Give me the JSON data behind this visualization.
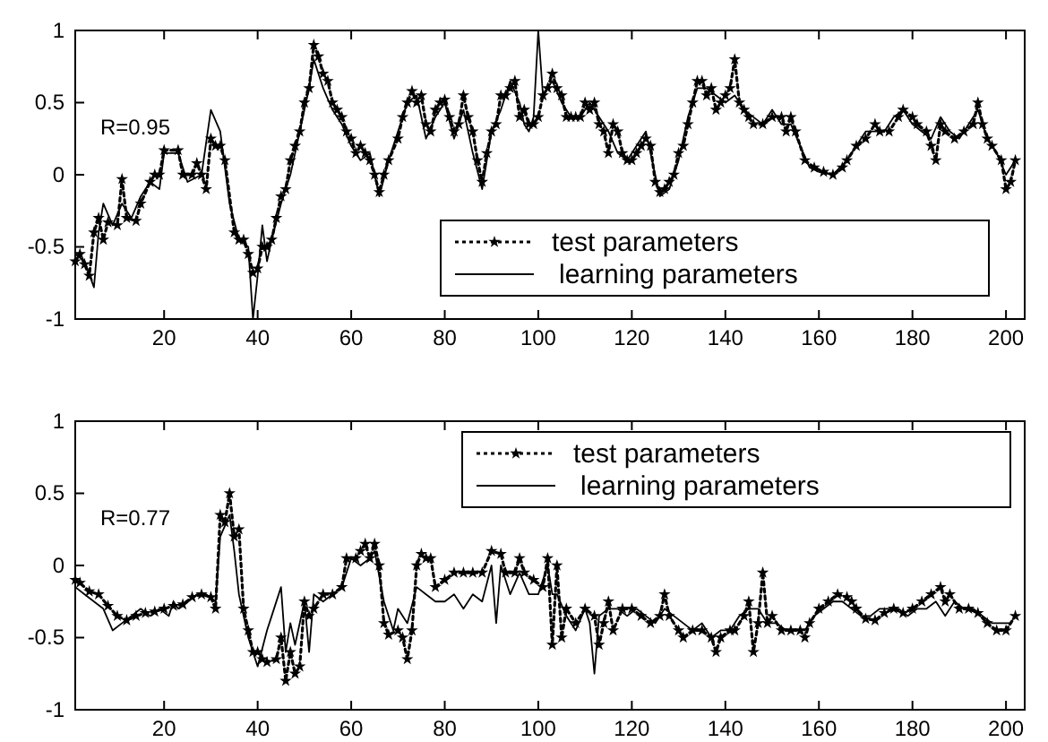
{
  "chart_data": [
    {
      "type": "line",
      "annotations": [
        "R=0.95"
      ],
      "xlim": [
        1,
        204
      ],
      "xticks": [
        20,
        40,
        60,
        80,
        100,
        120,
        140,
        160,
        180,
        200
      ],
      "ylim": [
        -1,
        1
      ],
      "yticks": [
        -1,
        -0.5,
        0,
        0.5,
        1
      ],
      "legend": "bottom right",
      "grid": false,
      "series": [
        {
          "name": "test parameters",
          "color": "#000000",
          "line_style": "dotted",
          "marker": "star",
          "x": [
            1,
            2,
            3,
            4,
            5,
            6,
            7,
            8,
            10,
            11,
            12,
            14,
            15,
            17,
            18,
            19,
            20,
            23,
            24,
            26,
            27,
            28,
            29,
            30,
            31,
            32,
            33,
            35,
            36,
            37,
            38,
            39,
            40,
            41,
            42,
            43,
            44,
            45,
            46,
            47,
            48,
            49,
            50,
            51,
            52,
            53,
            54,
            55,
            56,
            57,
            58,
            59,
            60,
            61,
            62,
            63,
            64,
            65,
            66,
            67,
            68,
            70,
            71,
            72,
            73,
            74,
            75,
            76,
            77,
            78,
            79,
            80,
            81,
            82,
            83,
            84,
            85,
            86,
            87,
            88,
            89,
            90,
            91,
            92,
            93,
            94,
            95,
            96,
            97,
            98,
            99,
            100,
            101,
            102,
            103,
            104,
            105,
            106,
            107,
            108,
            109,
            110,
            111,
            112,
            113,
            114,
            115,
            116,
            117,
            118,
            119,
            120,
            121,
            122,
            123,
            124,
            125,
            126,
            127,
            128,
            129,
            130,
            131,
            132,
            133,
            134,
            135,
            136,
            137,
            138,
            139,
            140,
            141,
            142,
            143,
            144,
            145,
            146,
            148,
            150,
            152,
            153,
            154,
            155,
            157,
            159,
            161,
            163,
            165,
            166,
            168,
            170,
            172,
            173,
            175,
            177,
            178,
            180,
            181,
            183,
            184,
            185,
            186,
            187,
            189,
            191,
            193,
            194,
            195,
            196,
            197,
            199,
            200,
            201,
            202
          ],
          "values": [
            -0.6,
            -0.55,
            -0.62,
            -0.7,
            -0.4,
            -0.3,
            -0.45,
            -0.33,
            -0.35,
            -0.03,
            -0.3,
            -0.32,
            -0.2,
            -0.05,
            0,
            0,
            0.17,
            0.17,
            0,
            0,
            0.08,
            0,
            -0.1,
            0.25,
            0.2,
            0.2,
            0.1,
            -0.4,
            -0.45,
            -0.45,
            -0.55,
            -0.68,
            -0.65,
            -0.5,
            -0.5,
            -0.45,
            -0.3,
            -0.15,
            -0.1,
            0.1,
            0.2,
            0.3,
            0.5,
            0.6,
            0.9,
            0.82,
            0.7,
            0.65,
            0.5,
            0.45,
            0.4,
            0.3,
            0.25,
            0.15,
            0.2,
            0.15,
            0.1,
            0,
            -0.12,
            0,
            0.1,
            0.25,
            0.4,
            0.5,
            0.58,
            0.5,
            0.55,
            0.35,
            0.3,
            0.45,
            0.5,
            0.52,
            0.4,
            0.3,
            0.35,
            0.55,
            0.4,
            0.3,
            0.1,
            -0.05,
            0.15,
            0.3,
            0.35,
            0.55,
            0.55,
            0.6,
            0.65,
            0.4,
            0.45,
            0.35,
            0.35,
            0.4,
            0.55,
            0.6,
            0.7,
            0.6,
            0.55,
            0.4,
            0.4,
            0.4,
            0.4,
            0.5,
            0.45,
            0.5,
            0.35,
            0.3,
            0.15,
            0.35,
            0.3,
            0.15,
            0.1,
            0.1,
            0.15,
            0.2,
            0.25,
            0.2,
            -0.05,
            -0.12,
            -0.1,
            -0.05,
            0,
            0.15,
            0.2,
            0.35,
            0.5,
            0.65,
            0.65,
            0.55,
            0.6,
            0.45,
            0.5,
            0.55,
            0.6,
            0.8,
            0.5,
            0.45,
            0.4,
            0.35,
            0.35,
            0.4,
            0.4,
            0.3,
            0.4,
            0.3,
            0.1,
            0.05,
            0.02,
            0,
            0.05,
            0.1,
            0.2,
            0.25,
            0.35,
            0.3,
            0.3,
            0.4,
            0.45,
            0.4,
            0.35,
            0.3,
            0.2,
            0.1,
            0.35,
            0.3,
            0.25,
            0.3,
            0.35,
            0.5,
            0.35,
            0.25,
            0.2,
            0.1,
            -0.1,
            -0.05,
            0.1
          ]
        },
        {
          "name": "learning parameters",
          "color": "#000000",
          "line_style": "solid",
          "marker": "none",
          "x": [
            1,
            3,
            5,
            6,
            7,
            9,
            11,
            13,
            15,
            17,
            19,
            20,
            23,
            25,
            28,
            30,
            32,
            34,
            36,
            38,
            39,
            40,
            41,
            42,
            43,
            45,
            47,
            49,
            51,
            52,
            54,
            56,
            58,
            60,
            62,
            64,
            66,
            68,
            70,
            72,
            74,
            76,
            78,
            80,
            82,
            84,
            86,
            88,
            90,
            92,
            94,
            96,
            97,
            98,
            99,
            100,
            101,
            103,
            105,
            107,
            109,
            111,
            113,
            115,
            117,
            119,
            121,
            123,
            125,
            126,
            128,
            130,
            132,
            134,
            136,
            138,
            140,
            142,
            144,
            146,
            148,
            150,
            152,
            154,
            156,
            158,
            160,
            163,
            166,
            168,
            170,
            172,
            174,
            176,
            178,
            180,
            182,
            184,
            186,
            188,
            190,
            192,
            194,
            196,
            198,
            200,
            202
          ],
          "values": [
            -0.55,
            -0.6,
            -0.78,
            -0.4,
            -0.2,
            -0.35,
            -0.2,
            -0.3,
            -0.15,
            -0.05,
            -0.1,
            0.15,
            0.15,
            -0.05,
            0,
            0.45,
            0.3,
            -0.2,
            -0.45,
            -0.5,
            -1,
            -0.7,
            -0.35,
            -0.6,
            -0.45,
            -0.2,
            0,
            0.3,
            0.6,
            0.8,
            0.6,
            0.45,
            0.35,
            0.2,
            0.1,
            0.15,
            -0.15,
            0.1,
            0.3,
            0.5,
            0.55,
            0.25,
            0.4,
            0.5,
            0.25,
            0.45,
            0.15,
            -0.1,
            0.3,
            0.45,
            0.65,
            0.5,
            0.35,
            0.3,
            0.4,
            1,
            0.55,
            0.65,
            0.5,
            0.4,
            0.4,
            0.5,
            0.4,
            0.3,
            0.15,
            0.1,
            0.2,
            0.3,
            0,
            -0.15,
            -0.1,
            0.1,
            0.4,
            0.6,
            0.6,
            0.55,
            0.5,
            0.55,
            0.45,
            0.4,
            0.35,
            0.45,
            0.35,
            0.35,
            0.2,
            0.05,
            0.02,
            0,
            0.1,
            0.2,
            0.3,
            0.3,
            0.3,
            0.4,
            0.45,
            0.35,
            0.3,
            0.25,
            0.4,
            0.3,
            0.25,
            0.35,
            0.45,
            0.25,
            0.15,
            0,
            0.1
          ]
        }
      ]
    },
    {
      "type": "line",
      "annotations": [
        "R=0.77"
      ],
      "xlim": [
        1,
        204
      ],
      "xticks": [
        20,
        40,
        60,
        80,
        100,
        120,
        140,
        160,
        180,
        200
      ],
      "ylim": [
        -1,
        1
      ],
      "yticks": [
        -1,
        -0.5,
        0,
        0.5,
        1
      ],
      "legend": "top right",
      "grid": false,
      "series": [
        {
          "name": "test parameters",
          "color": "#000000",
          "line_style": "dotted",
          "marker": "star",
          "x": [
            1,
            2,
            4,
            6,
            8,
            10,
            12,
            14,
            16,
            18,
            20,
            22,
            24,
            26,
            28,
            30,
            31,
            32,
            33,
            34,
            35,
            36,
            37,
            38,
            39,
            40,
            41,
            42,
            44,
            45,
            46,
            47,
            48,
            49,
            50,
            51,
            52,
            54,
            56,
            58,
            59,
            61,
            62,
            63,
            64,
            65,
            66,
            67,
            68,
            70,
            71,
            72,
            73,
            74,
            75,
            76,
            77,
            78,
            80,
            82,
            84,
            86,
            88,
            90,
            92,
            93,
            95,
            96,
            97,
            99,
            101,
            102,
            103,
            104,
            105,
            106,
            108,
            110,
            112,
            113,
            114,
            115,
            116,
            118,
            120,
            122,
            124,
            126,
            127,
            128,
            130,
            131,
            133,
            135,
            137,
            138,
            139,
            141,
            142,
            144,
            145,
            146,
            147,
            148,
            149,
            150,
            152,
            154,
            156,
            157,
            158,
            160,
            162,
            164,
            166,
            167,
            168,
            170,
            172,
            174,
            176,
            178,
            180,
            182,
            184,
            186,
            187,
            188,
            190,
            192,
            194,
            196,
            198,
            200,
            202
          ],
          "values": [
            -0.1,
            -0.12,
            -0.18,
            -0.2,
            -0.28,
            -0.35,
            -0.38,
            -0.35,
            -0.33,
            -0.32,
            -0.3,
            -0.28,
            -0.27,
            -0.22,
            -0.2,
            -0.22,
            -0.3,
            0.35,
            0.3,
            0.5,
            0.2,
            0.25,
            -0.3,
            -0.45,
            -0.6,
            -0.6,
            -0.65,
            -0.67,
            -0.65,
            -0.5,
            -0.8,
            -0.6,
            -0.75,
            -0.7,
            -0.25,
            -0.35,
            -0.3,
            -0.2,
            -0.2,
            -0.15,
            0.05,
            0.05,
            0.1,
            0.15,
            0.05,
            0.15,
            0,
            -0.4,
            -0.48,
            -0.45,
            -0.5,
            -0.65,
            -0.45,
            0,
            0.08,
            0.05,
            0.05,
            -0.15,
            -0.1,
            -0.05,
            -0.05,
            -0.05,
            -0.05,
            0.1,
            0.08,
            -0.05,
            -0.05,
            0.05,
            -0.05,
            -0.1,
            -0.15,
            0.05,
            -0.55,
            0,
            -0.5,
            -0.3,
            -0.4,
            -0.3,
            -0.35,
            -0.55,
            -0.4,
            -0.25,
            -0.45,
            -0.3,
            -0.3,
            -0.35,
            -0.4,
            -0.35,
            -0.2,
            -0.35,
            -0.45,
            -0.5,
            -0.45,
            -0.45,
            -0.5,
            -0.6,
            -0.5,
            -0.45,
            -0.45,
            -0.35,
            -0.25,
            -0.6,
            -0.4,
            -0.05,
            -0.4,
            -0.35,
            -0.45,
            -0.45,
            -0.45,
            -0.5,
            -0.4,
            -0.3,
            -0.25,
            -0.2,
            -0.22,
            -0.25,
            -0.3,
            -0.37,
            -0.38,
            -0.33,
            -0.3,
            -0.33,
            -0.3,
            -0.25,
            -0.2,
            -0.15,
            -0.25,
            -0.2,
            -0.3,
            -0.3,
            -0.33,
            -0.4,
            -0.45,
            -0.45,
            -0.35
          ]
        },
        {
          "name": "learning parameters",
          "color": "#000000",
          "line_style": "solid",
          "marker": "none",
          "x": [
            1,
            3,
            5,
            7,
            9,
            11,
            13,
            15,
            17,
            19,
            21,
            22,
            23,
            25,
            27,
            29,
            31,
            32,
            34,
            35,
            36,
            38,
            40,
            42,
            43,
            45,
            46,
            47,
            48,
            50,
            51,
            52,
            54,
            56,
            58,
            60,
            62,
            64,
            65,
            67,
            69,
            70,
            72,
            74,
            76,
            78,
            80,
            82,
            84,
            86,
            88,
            90,
            91,
            92,
            94,
            96,
            98,
            100,
            102,
            103,
            104,
            106,
            108,
            110,
            111,
            112,
            113,
            115,
            117,
            119,
            121,
            123,
            125,
            127,
            129,
            131,
            133,
            135,
            137,
            139,
            141,
            143,
            145,
            147,
            149,
            151,
            153,
            155,
            157,
            159,
            161,
            163,
            165,
            167,
            169,
            171,
            173,
            175,
            177,
            179,
            181,
            183,
            185,
            187,
            189,
            191,
            193,
            195,
            197,
            199,
            201
          ],
          "values": [
            -0.15,
            -0.2,
            -0.25,
            -0.3,
            -0.45,
            -0.4,
            -0.35,
            -0.3,
            -0.35,
            -0.3,
            -0.35,
            -0.25,
            -0.3,
            -0.25,
            -0.2,
            -0.2,
            -0.25,
            0.2,
            0.35,
            0.1,
            -0.2,
            -0.5,
            -0.7,
            -0.45,
            -0.35,
            -0.15,
            -0.6,
            -0.4,
            -0.55,
            -0.25,
            -0.6,
            -0.2,
            -0.25,
            -0.2,
            -0.15,
            0.05,
            0,
            0.05,
            0.1,
            -0.25,
            -0.45,
            -0.3,
            -0.4,
            -0.15,
            -0.2,
            -0.25,
            -0.25,
            -0.2,
            -0.3,
            -0.2,
            -0.25,
            0,
            -0.4,
            0,
            -0.2,
            -0.05,
            -0.2,
            -0.2,
            0,
            -0.2,
            -0.2,
            -0.35,
            -0.45,
            -0.3,
            -0.4,
            -0.75,
            -0.35,
            -0.3,
            -0.3,
            -0.35,
            -0.3,
            -0.35,
            -0.4,
            -0.3,
            -0.35,
            -0.4,
            -0.45,
            -0.4,
            -0.5,
            -0.45,
            -0.45,
            -0.35,
            -0.3,
            -0.3,
            -0.4,
            -0.4,
            -0.45,
            -0.45,
            -0.45,
            -0.35,
            -0.3,
            -0.25,
            -0.25,
            -0.3,
            -0.35,
            -0.35,
            -0.3,
            -0.3,
            -0.3,
            -0.35,
            -0.3,
            -0.3,
            -0.25,
            -0.35,
            -0.25,
            -0.3,
            -0.3,
            -0.35,
            -0.4,
            -0.4,
            -0.4
          ]
        }
      ]
    }
  ]
}
